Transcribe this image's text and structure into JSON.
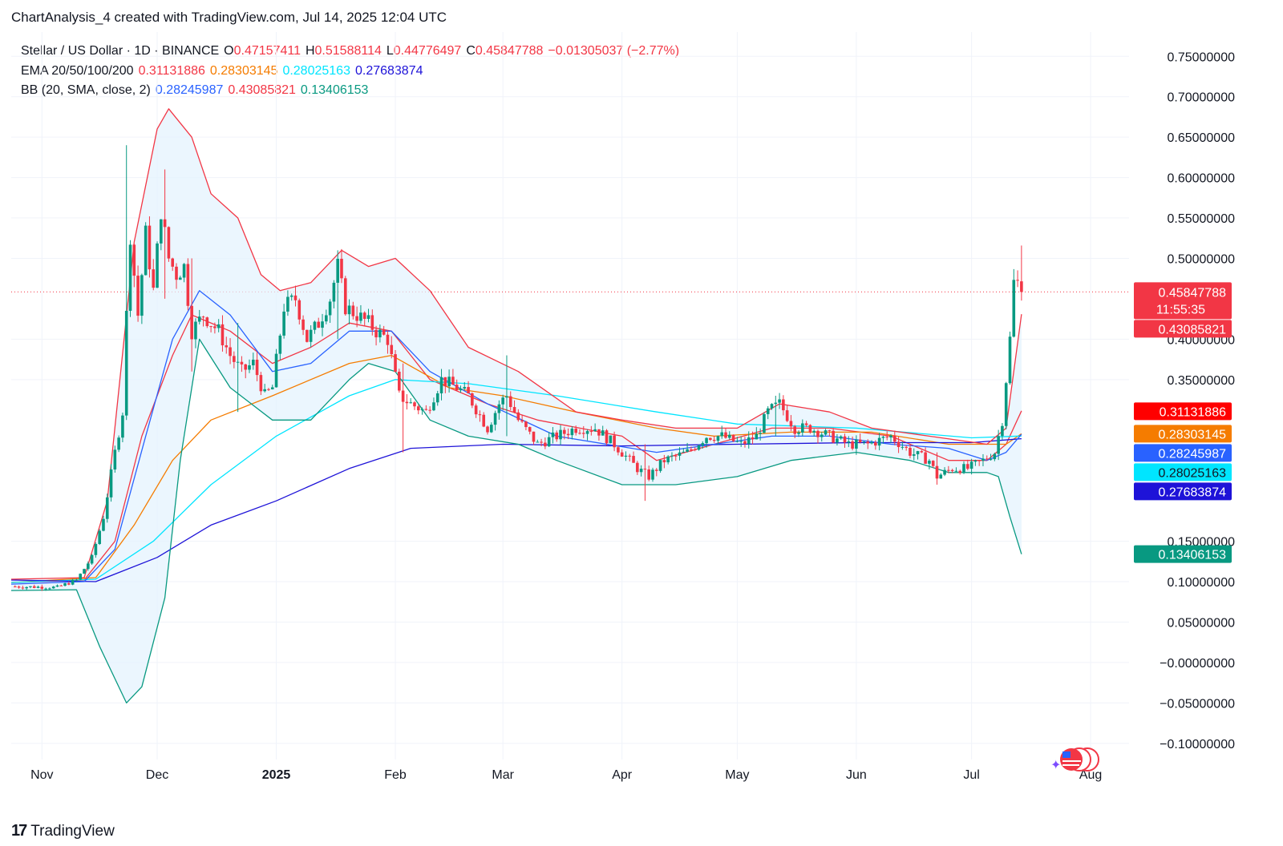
{
  "header": {
    "text": "ChartAnalysis_4 created with TradingView.com, Jul 14, 2025 12:04 UTC"
  },
  "legend": {
    "symbol": "Stellar / US Dollar · 1D · BINANCE",
    "ohlc": {
      "o_label": "O",
      "o": "0.47157411",
      "h_label": "H",
      "h": "0.51588114",
      "l_label": "L",
      "l": "0.44776497",
      "c_label": "C",
      "c": "0.45847788",
      "change": "−0.01305037 (−2.77%)"
    },
    "ema_label": "EMA 20/50/100/200",
    "ema_values": [
      "0.31131886",
      "0.28303145",
      "0.28025163",
      "0.27683874"
    ],
    "bb_label": "BB (20, SMA, close, 2)",
    "bb_values": [
      "0.28245987",
      "0.43085821",
      "0.13406153"
    ]
  },
  "colors": {
    "up": "#089981",
    "down": "#f23645",
    "text": "#131722",
    "grid": "#f0f3fa",
    "ema20": "#f23645",
    "ema50": "#f57c00",
    "ema100": "#00e5ff",
    "ema200": "#1e13d8",
    "bb_basis": "#2962ff",
    "bb_upper": "#f23645",
    "bb_lower": "#089981",
    "bb_fill": "#e3f2fd"
  },
  "chart_data": {
    "type": "candlestick",
    "title": "Stellar / US Dollar · 1D · BINANCE",
    "x_ticks": [
      "Nov",
      "Dec",
      "2025",
      "Feb",
      "Mar",
      "Apr",
      "May",
      "Jun",
      "Jul",
      "Aug"
    ],
    "y_ticks": [
      "0.75000000",
      "0.70000000",
      "0.65000000",
      "0.60000000",
      "0.55000000",
      "0.50000000",
      "0.40000000",
      "0.35000000",
      "0.15000000",
      "0.10000000",
      "0.05000000",
      "−0.00000000",
      "−0.05000000",
      "−0.10000000"
    ],
    "ylim": [
      -0.12,
      0.78
    ],
    "x_range": [
      "2024-10-24",
      "2025-08-11"
    ],
    "grid": true,
    "last_price_line": 0.45847788,
    "price_labels": [
      {
        "value": "0.45847788",
        "sub": "11:55:35",
        "kind": "price",
        "color": "#f23645"
      },
      {
        "value": "0.43085821",
        "kind": "bb_upper",
        "color": "#f23645"
      },
      {
        "value": "0.31131886",
        "kind": "ema20",
        "color": "#ff0000"
      },
      {
        "value": "0.28303145",
        "kind": "ema50",
        "color": "#f57c00"
      },
      {
        "value": "0.28245987",
        "kind": "bb_basis",
        "color": "#2962ff"
      },
      {
        "value": "0.28025163",
        "kind": "ema100",
        "color": "#00e5ff"
      },
      {
        "value": "0.27683874",
        "kind": "ema200",
        "color": "#1e13d8"
      },
      {
        "value": "0.13406153",
        "kind": "bb_lower",
        "color": "#089981"
      }
    ],
    "close_path": [
      [
        "2024-10-24",
        0.094
      ],
      [
        "2024-11-05",
        0.093
      ],
      [
        "2024-11-10",
        0.102
      ],
      [
        "2024-11-14",
        0.13
      ],
      [
        "2024-11-17",
        0.18
      ],
      [
        "2024-11-20",
        0.26
      ],
      [
        "2024-11-22",
        0.31
      ],
      [
        "2024-11-23",
        0.43
      ],
      [
        "2024-11-24",
        0.53
      ],
      [
        "2024-11-26",
        0.43
      ],
      [
        "2024-11-28",
        0.53
      ],
      [
        "2024-11-30",
        0.46
      ],
      [
        "2024-12-02",
        0.56
      ],
      [
        "2024-12-04",
        0.5
      ],
      [
        "2024-12-06",
        0.48
      ],
      [
        "2024-12-08",
        0.49
      ],
      [
        "2024-12-10",
        0.41
      ],
      [
        "2024-12-13",
        0.43
      ],
      [
        "2024-12-17",
        0.41
      ],
      [
        "2024-12-20",
        0.38
      ],
      [
        "2024-12-23",
        0.36
      ],
      [
        "2024-12-26",
        0.37
      ],
      [
        "2024-12-29",
        0.33
      ],
      [
        "2024-12-31",
        0.34
      ],
      [
        "2025-01-03",
        0.44
      ],
      [
        "2025-01-06",
        0.45
      ],
      [
        "2025-01-09",
        0.4
      ],
      [
        "2025-01-12",
        0.42
      ],
      [
        "2025-01-15",
        0.45
      ],
      [
        "2025-01-17",
        0.49
      ],
      [
        "2025-01-19",
        0.44
      ],
      [
        "2025-01-22",
        0.43
      ],
      [
        "2025-01-25",
        0.42
      ],
      [
        "2025-01-27",
        0.41
      ],
      [
        "2025-01-30",
        0.4
      ],
      [
        "2025-02-02",
        0.33
      ],
      [
        "2025-02-05",
        0.32
      ],
      [
        "2025-02-09",
        0.31
      ],
      [
        "2025-02-13",
        0.35
      ],
      [
        "2025-02-17",
        0.34
      ],
      [
        "2025-02-20",
        0.33
      ],
      [
        "2025-02-25",
        0.29
      ],
      [
        "2025-02-28",
        0.32
      ],
      [
        "2025-03-02",
        0.33
      ],
      [
        "2025-03-05",
        0.3
      ],
      [
        "2025-03-10",
        0.27
      ],
      [
        "2025-03-15",
        0.28
      ],
      [
        "2025-03-20",
        0.29
      ],
      [
        "2025-03-25",
        0.29
      ],
      [
        "2025-03-30",
        0.27
      ],
      [
        "2025-04-05",
        0.24
      ],
      [
        "2025-04-08",
        0.23
      ],
      [
        "2025-04-12",
        0.25
      ],
      [
        "2025-04-18",
        0.26
      ],
      [
        "2025-04-23",
        0.28
      ],
      [
        "2025-04-27",
        0.28
      ],
      [
        "2025-05-02",
        0.27
      ],
      [
        "2025-05-06",
        0.28
      ],
      [
        "2025-05-09",
        0.31
      ],
      [
        "2025-05-12",
        0.32
      ],
      [
        "2025-05-16",
        0.29
      ],
      [
        "2025-05-20",
        0.29
      ],
      [
        "2025-05-25",
        0.28
      ],
      [
        "2025-05-30",
        0.27
      ],
      [
        "2025-06-04",
        0.27
      ],
      [
        "2025-06-10",
        0.28
      ],
      [
        "2025-06-15",
        0.26
      ],
      [
        "2025-06-20",
        0.25
      ],
      [
        "2025-06-22",
        0.23
      ],
      [
        "2025-06-26",
        0.24
      ],
      [
        "2025-06-30",
        0.24
      ],
      [
        "2025-07-04",
        0.25
      ],
      [
        "2025-07-07",
        0.26
      ],
      [
        "2025-07-09",
        0.3
      ],
      [
        "2025-07-10",
        0.35
      ],
      [
        "2025-07-11",
        0.4
      ],
      [
        "2025-07-12",
        0.47
      ],
      [
        "2025-07-13",
        0.47
      ],
      [
        "2025-07-14",
        0.458
      ]
    ],
    "spikes": [
      [
        "2024-11-23",
        0.64,
        0.3
      ],
      [
        "2024-12-03",
        0.61,
        0.45
      ],
      [
        "2024-12-10",
        0.5,
        0.36
      ],
      [
        "2024-12-22",
        0.42,
        0.31
      ],
      [
        "2025-01-17",
        0.51,
        0.4
      ],
      [
        "2025-02-03",
        0.37,
        0.26
      ],
      [
        "2025-03-02",
        0.38,
        0.28
      ],
      [
        "2025-04-07",
        0.27,
        0.2
      ],
      [
        "2025-05-11",
        0.33,
        0.28
      ],
      [
        "2025-06-22",
        0.26,
        0.22
      ],
      [
        "2025-07-14",
        0.51588114,
        0.44776497
      ]
    ],
    "series": [
      {
        "name": "EMA 20",
        "color": "#f23645",
        "points": [
          [
            "2024-10-24",
            0.099
          ],
          [
            "2024-11-12",
            0.102
          ],
          [
            "2024-11-20",
            0.15
          ],
          [
            "2024-11-27",
            0.28
          ],
          [
            "2024-12-05",
            0.38
          ],
          [
            "2024-12-10",
            0.43
          ],
          [
            "2024-12-20",
            0.41
          ],
          [
            "2024-12-31",
            0.37
          ],
          [
            "2025-01-10",
            0.39
          ],
          [
            "2025-01-20",
            0.42
          ],
          [
            "2025-01-31",
            0.41
          ],
          [
            "2025-02-10",
            0.35
          ],
          [
            "2025-02-25",
            0.32
          ],
          [
            "2025-03-10",
            0.3
          ],
          [
            "2025-04-01",
            0.28
          ],
          [
            "2025-04-10",
            0.25
          ],
          [
            "2025-04-25",
            0.27
          ],
          [
            "2025-05-10",
            0.29
          ],
          [
            "2025-05-25",
            0.29
          ],
          [
            "2025-06-10",
            0.28
          ],
          [
            "2025-06-25",
            0.25
          ],
          [
            "2025-07-05",
            0.25
          ],
          [
            "2025-07-10",
            0.27
          ],
          [
            "2025-07-14",
            0.31131886
          ]
        ]
      },
      {
        "name": "EMA 50",
        "color": "#f57c00",
        "points": [
          [
            "2024-10-24",
            0.099
          ],
          [
            "2024-11-15",
            0.105
          ],
          [
            "2024-11-25",
            0.17
          ],
          [
            "2024-12-05",
            0.25
          ],
          [
            "2024-12-15",
            0.3
          ],
          [
            "2024-12-31",
            0.33
          ],
          [
            "2025-01-20",
            0.37
          ],
          [
            "2025-01-31",
            0.38
          ],
          [
            "2025-02-15",
            0.34
          ],
          [
            "2025-03-01",
            0.33
          ],
          [
            "2025-03-20",
            0.31
          ],
          [
            "2025-04-10",
            0.29
          ],
          [
            "2025-04-25",
            0.28
          ],
          [
            "2025-05-15",
            0.285
          ],
          [
            "2025-06-05",
            0.285
          ],
          [
            "2025-06-25",
            0.27
          ],
          [
            "2025-07-10",
            0.27
          ],
          [
            "2025-07-14",
            0.28303145
          ]
        ]
      },
      {
        "name": "EMA 100",
        "color": "#00e5ff",
        "points": [
          [
            "2024-10-24",
            0.099
          ],
          [
            "2024-11-15",
            0.103
          ],
          [
            "2024-11-30",
            0.15
          ],
          [
            "2024-12-15",
            0.22
          ],
          [
            "2025-01-01",
            0.28
          ],
          [
            "2025-01-20",
            0.33
          ],
          [
            "2025-02-01",
            0.35
          ],
          [
            "2025-02-20",
            0.345
          ],
          [
            "2025-03-15",
            0.33
          ],
          [
            "2025-04-10",
            0.31
          ],
          [
            "2025-05-01",
            0.295
          ],
          [
            "2025-06-01",
            0.29
          ],
          [
            "2025-07-01",
            0.278
          ],
          [
            "2025-07-14",
            0.28025163
          ]
        ]
      },
      {
        "name": "EMA 200",
        "color": "#1e13d8",
        "points": [
          [
            "2024-10-24",
            0.102
          ],
          [
            "2024-11-15",
            0.1
          ],
          [
            "2024-12-01",
            0.13
          ],
          [
            "2024-12-15",
            0.17
          ],
          [
            "2025-01-01",
            0.2
          ],
          [
            "2025-01-20",
            0.24
          ],
          [
            "2025-02-05",
            0.265
          ],
          [
            "2025-03-01",
            0.27
          ],
          [
            "2025-04-01",
            0.268
          ],
          [
            "2025-05-01",
            0.27
          ],
          [
            "2025-06-01",
            0.272
          ],
          [
            "2025-07-01",
            0.272
          ],
          [
            "2025-07-14",
            0.27683874
          ]
        ]
      },
      {
        "name": "BB basis",
        "color": "#2962ff",
        "points": [
          [
            "2024-10-24",
            0.097
          ],
          [
            "2024-11-12",
            0.1
          ],
          [
            "2024-11-20",
            0.14
          ],
          [
            "2024-11-28",
            0.28
          ],
          [
            "2024-12-05",
            0.4
          ],
          [
            "2024-12-12",
            0.46
          ],
          [
            "2024-12-20",
            0.43
          ],
          [
            "2024-12-31",
            0.36
          ],
          [
            "2025-01-10",
            0.37
          ],
          [
            "2025-01-20",
            0.41
          ],
          [
            "2025-01-31",
            0.41
          ],
          [
            "2025-02-10",
            0.36
          ],
          [
            "2025-02-25",
            0.32
          ],
          [
            "2025-03-15",
            0.28
          ],
          [
            "2025-04-10",
            0.26
          ],
          [
            "2025-04-25",
            0.27
          ],
          [
            "2025-05-10",
            0.28
          ],
          [
            "2025-05-25",
            0.28
          ],
          [
            "2025-06-10",
            0.27
          ],
          [
            "2025-06-25",
            0.265
          ],
          [
            "2025-07-05",
            0.25
          ],
          [
            "2025-07-10",
            0.26
          ],
          [
            "2025-07-14",
            0.28245987
          ]
        ]
      },
      {
        "name": "BB upper",
        "color": "#f23645",
        "points": [
          [
            "2024-10-24",
            0.103
          ],
          [
            "2024-11-12",
            0.105
          ],
          [
            "2024-11-18",
            0.2
          ],
          [
            "2024-11-25",
            0.52
          ],
          [
            "2024-12-01",
            0.66
          ],
          [
            "2024-12-04",
            0.685
          ],
          [
            "2024-12-10",
            0.65
          ],
          [
            "2024-12-15",
            0.58
          ],
          [
            "2024-12-22",
            0.55
          ],
          [
            "2024-12-28",
            0.48
          ],
          [
            "2025-01-02",
            0.46
          ],
          [
            "2025-01-10",
            0.47
          ],
          [
            "2025-01-18",
            0.51
          ],
          [
            "2025-01-25",
            0.49
          ],
          [
            "2025-02-01",
            0.5
          ],
          [
            "2025-02-10",
            0.46
          ],
          [
            "2025-02-20",
            0.39
          ],
          [
            "2025-03-05",
            0.36
          ],
          [
            "2025-03-20",
            0.31
          ],
          [
            "2025-04-01",
            0.3
          ],
          [
            "2025-04-15",
            0.29
          ],
          [
            "2025-05-01",
            0.29
          ],
          [
            "2025-05-12",
            0.32
          ],
          [
            "2025-05-25",
            0.31
          ],
          [
            "2025-06-05",
            0.29
          ],
          [
            "2025-06-20",
            0.28
          ],
          [
            "2025-07-05",
            0.27
          ],
          [
            "2025-07-10",
            0.29
          ],
          [
            "2025-07-14",
            0.43085821
          ]
        ]
      },
      {
        "name": "BB lower",
        "color": "#089981",
        "points": [
          [
            "2024-10-24",
            0.089
          ],
          [
            "2024-11-10",
            0.09
          ],
          [
            "2024-11-16",
            0.02
          ],
          [
            "2024-11-20",
            -0.02
          ],
          [
            "2024-11-23",
            -0.05
          ],
          [
            "2024-11-27",
            -0.03
          ],
          [
            "2024-12-03",
            0.08
          ],
          [
            "2024-12-07",
            0.25
          ],
          [
            "2024-12-12",
            0.4
          ],
          [
            "2024-12-20",
            0.34
          ],
          [
            "2024-12-31",
            0.3
          ],
          [
            "2025-01-10",
            0.3
          ],
          [
            "2025-01-20",
            0.35
          ],
          [
            "2025-01-25",
            0.37
          ],
          [
            "2025-02-01",
            0.36
          ],
          [
            "2025-02-10",
            0.3
          ],
          [
            "2025-02-20",
            0.28
          ],
          [
            "2025-03-05",
            0.27
          ],
          [
            "2025-03-15",
            0.25
          ],
          [
            "2025-04-01",
            0.22
          ],
          [
            "2025-04-15",
            0.22
          ],
          [
            "2025-05-01",
            0.23
          ],
          [
            "2025-05-15",
            0.25
          ],
          [
            "2025-06-01",
            0.26
          ],
          [
            "2025-06-15",
            0.25
          ],
          [
            "2025-06-25",
            0.235
          ],
          [
            "2025-07-05",
            0.235
          ],
          [
            "2025-07-08",
            0.23
          ],
          [
            "2025-07-11",
            0.18
          ],
          [
            "2025-07-14",
            0.13406153
          ]
        ]
      }
    ]
  },
  "brand": {
    "logo": "17",
    "name": "TradingView"
  }
}
